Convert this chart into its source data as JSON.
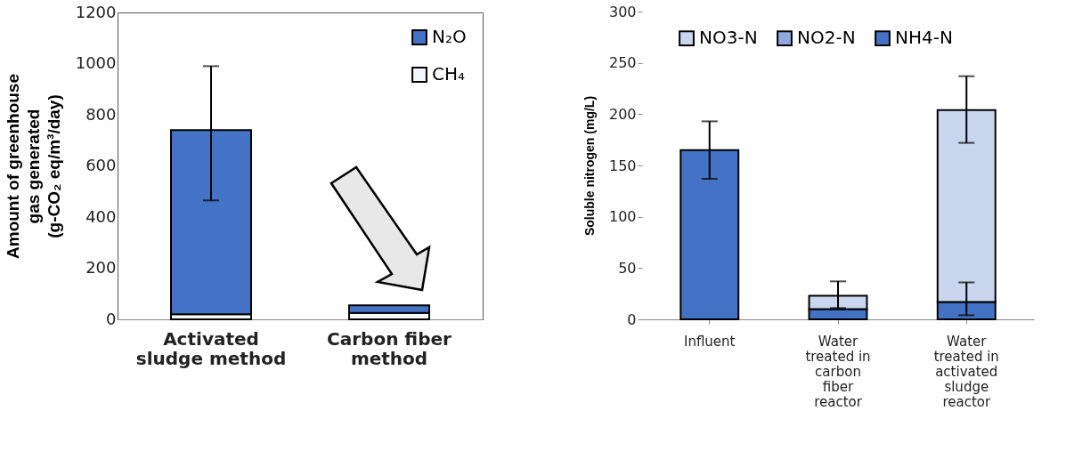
{
  "chart_data": [
    {
      "type": "bar",
      "stacked": true,
      "ylabel": "Amount of greenhouse\ngas generated\n(g-CO₂ eq/m³/day)",
      "categories": [
        "Activated\nsludge method",
        "Carbon fiber\nmethod"
      ],
      "ylim": [
        0,
        1200
      ],
      "yticks": [
        0,
        200,
        400,
        600,
        800,
        1000,
        1200
      ],
      "legend": "top right",
      "series": [
        {
          "name": "CH₄",
          "color": "#f4f7fc",
          "values": [
            20,
            25
          ],
          "errors": [
            null,
            null
          ]
        },
        {
          "name": "N₂O",
          "color": "#4472c4",
          "values": [
            720,
            30
          ],
          "errors": [
            [
              465,
              990
            ],
            null
          ]
        }
      ]
    },
    {
      "type": "bar",
      "stacked": true,
      "ylabel": "Soluble nitrogen  (mg/L)",
      "categories": [
        "Influent",
        "Water\ntreated in\ncarbon\nfiber\nreactor",
        "Water\ntreated in\nactivated\nsludge\nreactor"
      ],
      "ylim": [
        0,
        300
      ],
      "yticks": [
        0,
        50,
        100,
        150,
        200,
        250,
        300
      ],
      "legend": "top",
      "series": [
        {
          "name": "NH4-N",
          "color": "#4472c4",
          "values": [
            165,
            10,
            17
          ],
          "errors": [
            [
              137,
              193
            ],
            null,
            [
              4,
              36
            ]
          ]
        },
        {
          "name": "NO2-N",
          "color": "#8faadc",
          "values": [
            null,
            null,
            null
          ]
        },
        {
          "name": "NO3-N",
          "color": "#c9d6ee",
          "values": [
            null,
            13,
            187
          ],
          "errors": [
            null,
            [
              11,
              37
            ],
            [
              172,
              237
            ]
          ]
        }
      ]
    }
  ]
}
